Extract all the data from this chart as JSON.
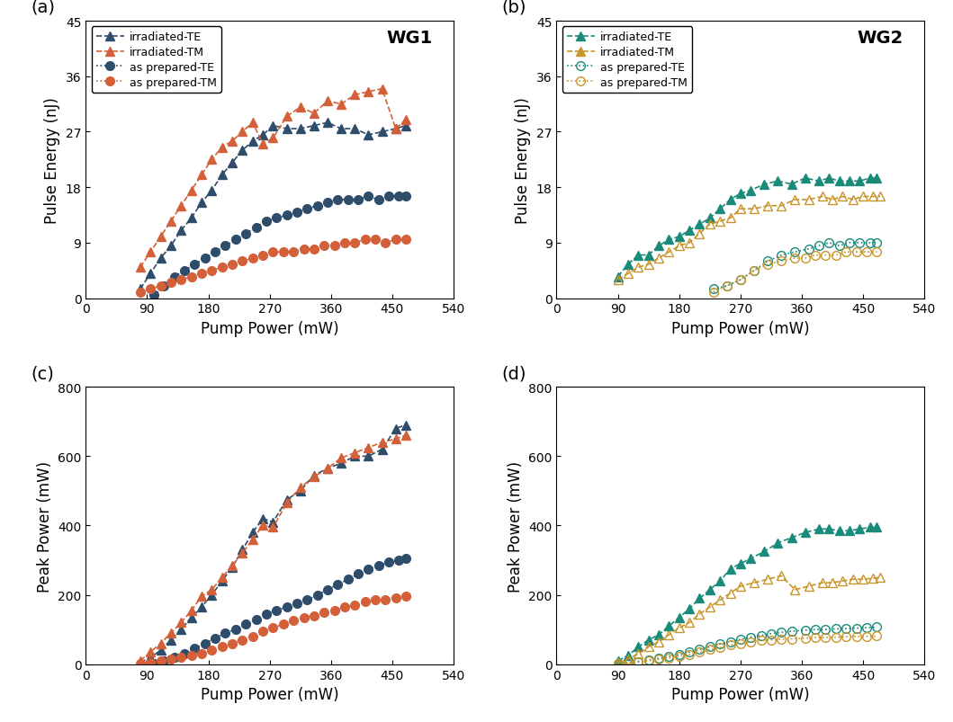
{
  "panel_a": {
    "title": "WG1",
    "xlabel": "Pump Power (mW)",
    "ylabel": "Pulse Energy (nJ)",
    "xlim": [
      0,
      540
    ],
    "ylim": [
      0,
      45
    ],
    "xticks": [
      0,
      90,
      180,
      270,
      360,
      450,
      540
    ],
    "yticks": [
      0,
      9,
      18,
      27,
      36,
      45
    ],
    "series": {
      "irradiated_TE": {
        "x": [
          80,
          95,
          110,
          125,
          140,
          155,
          170,
          185,
          200,
          215,
          230,
          245,
          260,
          275,
          295,
          315,
          335,
          355,
          375,
          395,
          415,
          435,
          455,
          470
        ],
        "y": [
          1.5,
          4.0,
          6.5,
          8.5,
          11.0,
          13.0,
          15.5,
          17.5,
          20.0,
          22.0,
          24.0,
          25.5,
          26.5,
          28.0,
          27.5,
          27.5,
          28.0,
          28.5,
          27.5,
          27.5,
          26.5,
          27.0,
          27.5,
          28.0
        ],
        "color": "#2e4d6b",
        "marker": "^",
        "linestyle": "--",
        "fillstyle": "full",
        "label": "irradiated-TE"
      },
      "irradiated_TM": {
        "x": [
          80,
          95,
          110,
          125,
          140,
          155,
          170,
          185,
          200,
          215,
          230,
          245,
          260,
          275,
          295,
          315,
          335,
          355,
          375,
          395,
          415,
          435,
          455,
          470
        ],
        "y": [
          5.0,
          7.5,
          10.0,
          12.5,
          15.0,
          17.5,
          20.0,
          22.5,
          24.5,
          25.5,
          27.0,
          28.5,
          25.0,
          26.0,
          29.5,
          31.0,
          30.0,
          32.0,
          31.5,
          33.0,
          33.5,
          34.0,
          27.5,
          29.0
        ],
        "color": "#d4603a",
        "marker": "^",
        "linestyle": "--",
        "fillstyle": "full",
        "label": "irradiated-TM"
      },
      "as_prepared_TE": {
        "x": [
          100,
          115,
          130,
          145,
          160,
          175,
          190,
          205,
          220,
          235,
          250,
          265,
          280,
          295,
          310,
          325,
          340,
          355,
          370,
          385,
          400,
          415,
          430,
          445,
          460,
          470
        ],
        "y": [
          0.5,
          2.0,
          3.5,
          4.5,
          5.5,
          6.5,
          7.5,
          8.5,
          9.5,
          10.5,
          11.5,
          12.5,
          13.0,
          13.5,
          14.0,
          14.5,
          15.0,
          15.5,
          16.0,
          16.0,
          16.0,
          16.5,
          16.0,
          16.5,
          16.5,
          16.5
        ],
        "color": "#2e4d6b",
        "marker": "o",
        "linestyle": ":",
        "fillstyle": "full",
        "label": "as prepared-TE"
      },
      "as_prepared_TM": {
        "x": [
          80,
          95,
          110,
          125,
          140,
          155,
          170,
          185,
          200,
          215,
          230,
          245,
          260,
          275,
          290,
          305,
          320,
          335,
          350,
          365,
          380,
          395,
          410,
          425,
          440,
          455,
          470
        ],
        "y": [
          1.0,
          1.5,
          2.0,
          2.5,
          3.0,
          3.5,
          4.0,
          4.5,
          5.0,
          5.5,
          6.0,
          6.5,
          7.0,
          7.5,
          7.5,
          7.5,
          8.0,
          8.0,
          8.5,
          8.5,
          9.0,
          9.0,
          9.5,
          9.5,
          9.0,
          9.5,
          9.5
        ],
        "color": "#d4603a",
        "marker": "o",
        "linestyle": ":",
        "fillstyle": "full",
        "label": "as prepared-TM"
      }
    }
  },
  "panel_b": {
    "title": "WG2",
    "xlabel": "Pump Power (mW)",
    "ylabel": "Pulse Energy (nJ)",
    "xlim": [
      0,
      540
    ],
    "ylim": [
      0,
      45
    ],
    "xticks": [
      0,
      90,
      180,
      270,
      360,
      450,
      540
    ],
    "yticks": [
      0,
      9,
      18,
      27,
      36,
      45
    ],
    "series": {
      "irradiated_TE": {
        "x": [
          90,
          105,
          120,
          135,
          150,
          165,
          180,
          195,
          210,
          225,
          240,
          255,
          270,
          285,
          305,
          325,
          345,
          365,
          385,
          400,
          415,
          430,
          445,
          460,
          470
        ],
        "y": [
          3.5,
          5.5,
          7.0,
          7.0,
          8.5,
          9.5,
          10.0,
          11.0,
          12.0,
          13.0,
          14.5,
          16.0,
          17.0,
          17.5,
          18.5,
          19.0,
          18.5,
          19.5,
          19.0,
          19.5,
          19.0,
          19.0,
          19.0,
          19.5,
          19.5
        ],
        "color": "#1a8a7a",
        "marker": "^",
        "linestyle": "--",
        "fillstyle": "full",
        "label": "irradiated-TE"
      },
      "irradiated_TM": {
        "x": [
          90,
          105,
          120,
          135,
          150,
          165,
          180,
          195,
          210,
          225,
          240,
          255,
          270,
          290,
          310,
          330,
          350,
          370,
          390,
          405,
          420,
          435,
          450,
          465,
          475
        ],
        "y": [
          3.0,
          4.0,
          5.0,
          5.5,
          6.5,
          7.5,
          8.5,
          9.0,
          10.5,
          12.0,
          12.5,
          13.0,
          14.5,
          14.5,
          15.0,
          15.0,
          16.0,
          16.0,
          16.5,
          16.0,
          16.5,
          16.0,
          16.5,
          16.5,
          16.5
        ],
        "color": "#c8952a",
        "marker": "^",
        "linestyle": "--",
        "fillstyle": "none",
        "label": "irradiated-TM"
      },
      "as_prepared_TE": {
        "x": [
          230,
          250,
          270,
          290,
          310,
          330,
          350,
          370,
          385,
          400,
          415,
          430,
          445,
          460,
          470
        ],
        "y": [
          1.5,
          2.0,
          3.0,
          4.5,
          6.0,
          7.0,
          7.5,
          8.0,
          8.5,
          9.0,
          8.5,
          9.0,
          9.0,
          9.0,
          9.0
        ],
        "color": "#1a8a7a",
        "marker": "o",
        "linestyle": ":",
        "fillstyle": "none",
        "label": "as prepared-TE"
      },
      "as_prepared_TM": {
        "x": [
          230,
          250,
          270,
          290,
          310,
          330,
          350,
          365,
          380,
          395,
          410,
          425,
          440,
          455,
          470
        ],
        "y": [
          1.0,
          2.0,
          3.0,
          4.5,
          5.5,
          6.0,
          6.5,
          6.5,
          7.0,
          7.0,
          7.0,
          7.5,
          7.5,
          7.5,
          7.5
        ],
        "color": "#c8952a",
        "marker": "o",
        "linestyle": ":",
        "fillstyle": "none",
        "label": "as prepared-TM"
      }
    }
  },
  "panel_c": {
    "xlabel": "Pump Power (mW)",
    "ylabel": "Peak Power (mW)",
    "xlim": [
      0,
      540
    ],
    "ylim": [
      0,
      800
    ],
    "xticks": [
      0,
      90,
      180,
      270,
      360,
      450,
      540
    ],
    "yticks": [
      0,
      200,
      400,
      600,
      800
    ],
    "series": {
      "irradiated_TE": {
        "x": [
          80,
          95,
          110,
          125,
          140,
          155,
          170,
          185,
          200,
          215,
          230,
          245,
          260,
          275,
          295,
          315,
          335,
          355,
          375,
          395,
          415,
          435,
          455,
          470
        ],
        "y": [
          5,
          20,
          40,
          70,
          100,
          135,
          165,
          200,
          240,
          280,
          330,
          380,
          420,
          410,
          475,
          500,
          545,
          565,
          580,
          600,
          600,
          620,
          680,
          690
        ],
        "color": "#2e4d6b",
        "marker": "^",
        "linestyle": "--",
        "fillstyle": "full",
        "label": "irradiated-TE"
      },
      "irradiated_TM": {
        "x": [
          80,
          95,
          110,
          125,
          140,
          155,
          170,
          185,
          200,
          215,
          230,
          245,
          260,
          275,
          295,
          315,
          335,
          355,
          375,
          395,
          415,
          435,
          455,
          470
        ],
        "y": [
          10,
          35,
          60,
          90,
          120,
          155,
          195,
          215,
          250,
          285,
          320,
          360,
          400,
          395,
          465,
          510,
          540,
          565,
          595,
          610,
          625,
          640,
          650,
          660
        ],
        "color": "#d4603a",
        "marker": "^",
        "linestyle": "--",
        "fillstyle": "full",
        "label": "irradiated-TM"
      },
      "as_prepared_TE": {
        "x": [
          100,
          115,
          130,
          145,
          160,
          175,
          190,
          205,
          220,
          235,
          250,
          265,
          280,
          295,
          310,
          325,
          340,
          355,
          370,
          385,
          400,
          415,
          430,
          445,
          460,
          470
        ],
        "y": [
          2,
          10,
          20,
          30,
          45,
          60,
          75,
          90,
          100,
          115,
          130,
          145,
          155,
          165,
          175,
          185,
          200,
          215,
          230,
          245,
          260,
          275,
          285,
          295,
          300,
          305
        ],
        "color": "#2e4d6b",
        "marker": "o",
        "linestyle": ":",
        "fillstyle": "full",
        "label": "as prepared-TE"
      },
      "as_prepared_TM": {
        "x": [
          80,
          95,
          110,
          125,
          140,
          155,
          170,
          185,
          200,
          215,
          230,
          245,
          260,
          275,
          290,
          305,
          320,
          335,
          350,
          365,
          380,
          395,
          410,
          425,
          440,
          455,
          470
        ],
        "y": [
          2,
          5,
          10,
          15,
          20,
          25,
          30,
          40,
          50,
          60,
          70,
          80,
          95,
          105,
          115,
          125,
          135,
          140,
          150,
          155,
          165,
          170,
          180,
          185,
          185,
          190,
          195
        ],
        "color": "#d4603a",
        "marker": "o",
        "linestyle": ":",
        "fillstyle": "full",
        "label": "as prepared-TM"
      }
    }
  },
  "panel_d": {
    "xlabel": "Pump Power (mW)",
    "ylabel": "Peak Power (mW)",
    "xlim": [
      0,
      540
    ],
    "ylim": [
      0,
      800
    ],
    "xticks": [
      0,
      90,
      180,
      270,
      360,
      450,
      540
    ],
    "yticks": [
      0,
      200,
      400,
      600,
      800
    ],
    "series": {
      "irradiated_TE": {
        "x": [
          90,
          105,
          120,
          135,
          150,
          165,
          180,
          195,
          210,
          225,
          240,
          255,
          270,
          285,
          305,
          325,
          345,
          365,
          385,
          400,
          415,
          430,
          445,
          460,
          470
        ],
        "y": [
          10,
          25,
          50,
          70,
          85,
          110,
          135,
          160,
          190,
          215,
          240,
          275,
          290,
          305,
          325,
          350,
          365,
          380,
          390,
          390,
          385,
          385,
          390,
          395,
          395
        ],
        "color": "#1a8a7a",
        "marker": "^",
        "linestyle": "--",
        "fillstyle": "full",
        "label": "irradiated-TE"
      },
      "irradiated_TM": {
        "x": [
          90,
          105,
          120,
          135,
          150,
          165,
          180,
          195,
          210,
          225,
          240,
          255,
          270,
          290,
          310,
          330,
          350,
          370,
          390,
          405,
          420,
          435,
          450,
          465,
          475
        ],
        "y": [
          5,
          15,
          30,
          50,
          65,
          85,
          105,
          120,
          145,
          165,
          185,
          205,
          225,
          235,
          245,
          255,
          215,
          225,
          235,
          235,
          240,
          245,
          245,
          248,
          250
        ],
        "color": "#c8952a",
        "marker": "^",
        "linestyle": "--",
        "fillstyle": "none",
        "label": "irradiated-TM"
      },
      "as_prepared_TE": {
        "x": [
          90,
          105,
          120,
          135,
          150,
          165,
          180,
          195,
          210,
          225,
          240,
          255,
          270,
          285,
          300,
          315,
          330,
          345,
          365,
          380,
          395,
          410,
          425,
          440,
          455,
          470
        ],
        "y": [
          2,
          5,
          8,
          12,
          17,
          22,
          28,
          35,
          42,
          50,
          58,
          65,
          72,
          78,
          83,
          88,
          92,
          95,
          98,
          100,
          100,
          102,
          103,
          104,
          105,
          107
        ],
        "color": "#1a8a7a",
        "marker": "o",
        "linestyle": ":",
        "fillstyle": "none",
        "label": "as prepared-TE"
      },
      "as_prepared_TM": {
        "x": [
          90,
          105,
          120,
          135,
          150,
          165,
          180,
          195,
          210,
          225,
          240,
          255,
          270,
          285,
          300,
          315,
          330,
          345,
          365,
          380,
          395,
          410,
          425,
          440,
          455,
          470
        ],
        "y": [
          2,
          4,
          6,
          10,
          14,
          18,
          23,
          28,
          35,
          42,
          48,
          55,
          60,
          65,
          68,
          70,
          72,
          73,
          75,
          77,
          77,
          78,
          79,
          80,
          80,
          81
        ],
        "color": "#c8952a",
        "marker": "o",
        "linestyle": ":",
        "fillstyle": "none",
        "label": "as prepared-TM"
      }
    }
  },
  "panel_labels": [
    "(a)",
    "(b)",
    "(c)",
    "(d)"
  ],
  "panel_wg_labels": [
    "WG1",
    "WG2"
  ],
  "background_color": "#ffffff",
  "marker_size": 7,
  "linewidth": 1.2
}
